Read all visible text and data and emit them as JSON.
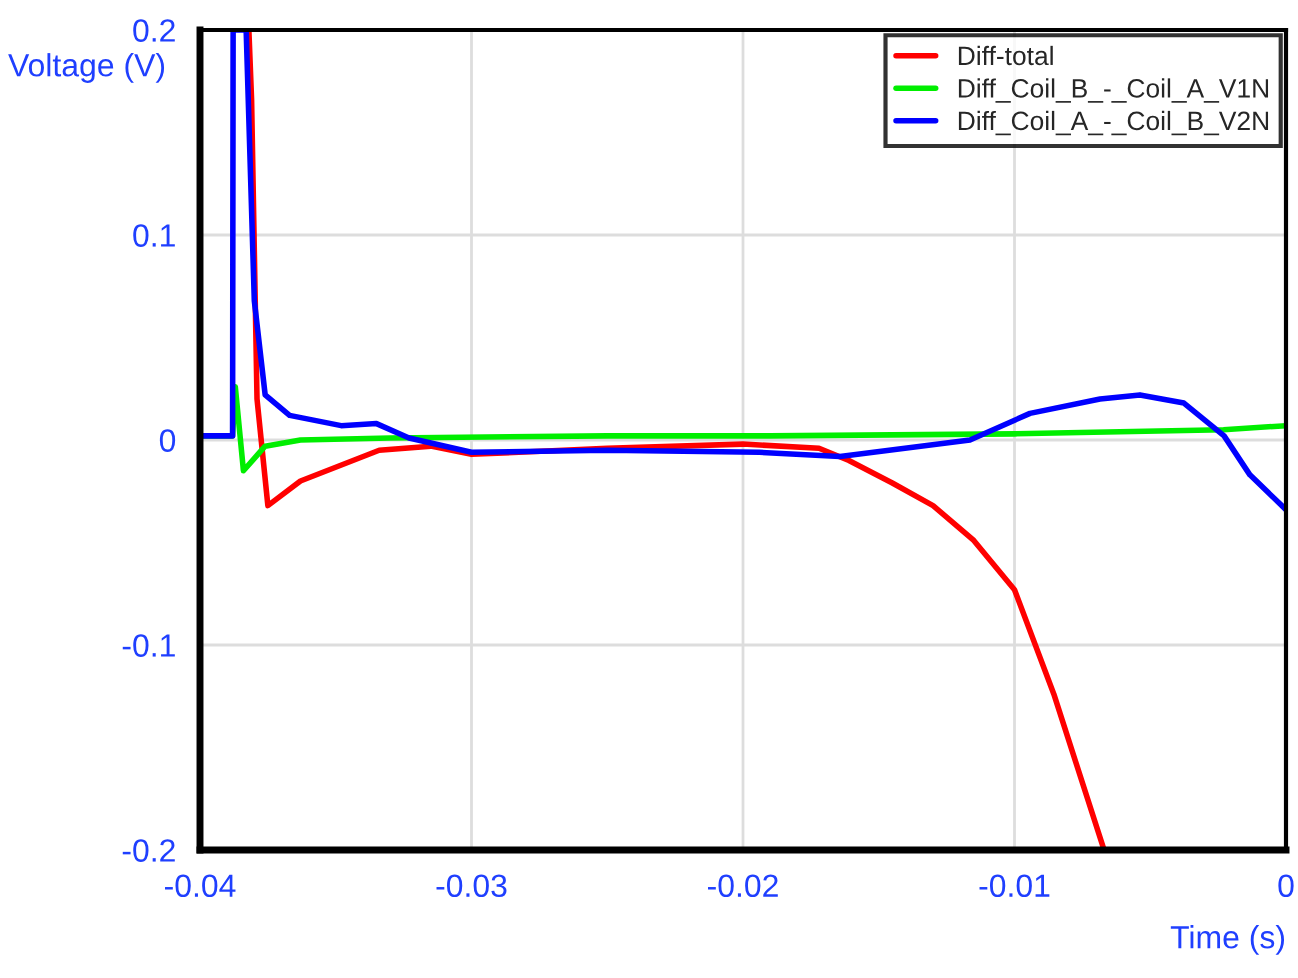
{
  "chart_data": {
    "type": "line",
    "xlabel": "Time (s)",
    "ylabel": "Voltage (V)",
    "xlim": [
      -0.04,
      0
    ],
    "ylim": [
      -0.2,
      0.2
    ],
    "xticks": [
      {
        "value": -0.04,
        "label": "-0.04"
      },
      {
        "value": -0.03,
        "label": "-0.03"
      },
      {
        "value": -0.02,
        "label": "-0.02"
      },
      {
        "value": -0.01,
        "label": "-0.01"
      },
      {
        "value": 0,
        "label": "0"
      }
    ],
    "yticks": [
      {
        "value": -0.2,
        "label": "-0.2"
      },
      {
        "value": -0.1,
        "label": "-0.1"
      },
      {
        "value": 0,
        "label": "0"
      },
      {
        "value": 0.1,
        "label": "0.1"
      },
      {
        "value": 0.2,
        "label": "0.2"
      }
    ],
    "grid": true,
    "legend": "top right",
    "line_style": "solid",
    "marker": "none",
    "series": [
      {
        "name": "Diff-total",
        "color": "#ff0000",
        "x": [
          -0.0382,
          -0.0381,
          -0.0379,
          -0.0375,
          -0.0363,
          -0.0334,
          -0.0315,
          -0.03,
          -0.025,
          -0.02,
          -0.0172,
          -0.0161,
          -0.0145,
          -0.013,
          -0.0115,
          -0.01,
          -0.00855,
          -0.0067
        ],
        "values": [
          0.2,
          0.166,
          0.02,
          -0.032,
          -0.02,
          -0.005,
          -0.003,
          -0.007,
          -0.004,
          -0.002,
          -0.004,
          -0.01,
          -0.021,
          -0.032,
          -0.049,
          -0.073,
          -0.124,
          -0.2
        ]
      },
      {
        "name": "Diff_Coil_B_-_Coil_A_V1N",
        "color": "#00ee00",
        "x": [
          -0.04,
          -0.0388,
          -0.0387,
          -0.0384,
          -0.0376,
          -0.0363,
          -0.033,
          -0.025,
          -0.019,
          -0.01,
          -0.0023,
          0
        ],
        "values": [
          0.002,
          0.002,
          0.026,
          -0.015,
          -0.003,
          0.0,
          0.001,
          0.002,
          0.002,
          0.003,
          0.005,
          0.007
        ]
      },
      {
        "name": "Diff_Coil_A_-_Coil_B_V2N",
        "color": "#0000ff",
        "x": [
          -0.04,
          -0.0388,
          -0.03878,
          -0.0383,
          -0.038,
          -0.0376,
          -0.0367,
          -0.0348,
          -0.0335,
          -0.0323,
          -0.03,
          -0.025,
          -0.0194,
          -0.01643,
          -0.01164,
          -0.00943,
          -0.00685,
          -0.00538,
          -0.00376,
          -0.00228,
          -0.00133,
          0
        ],
        "values": [
          0.002,
          0.002,
          0.2,
          0.2,
          0.068,
          0.022,
          0.012,
          0.007,
          0.008,
          0.001,
          -0.006,
          -0.005,
          -0.006,
          -0.008,
          0.0,
          0.013,
          0.02,
          0.022,
          0.018,
          0.002,
          -0.017,
          -0.034
        ]
      }
    ]
  }
}
